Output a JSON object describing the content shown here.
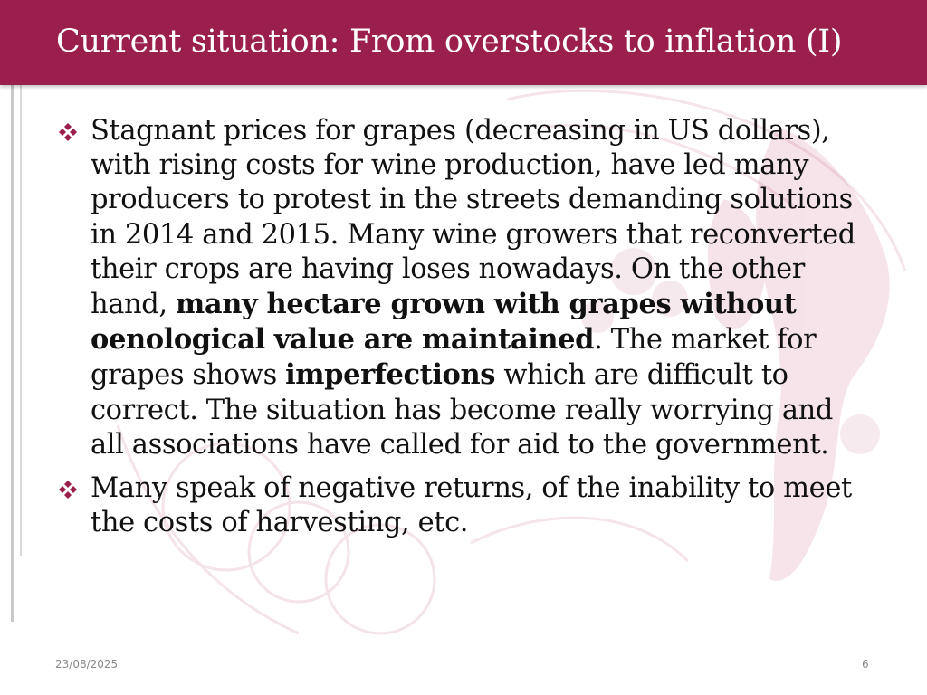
{
  "slide": {
    "title": "Current situation: From overstocks to inflation (I)",
    "bullets": [
      {
        "segments": [
          {
            "text": "Stagnant prices for grapes (decreasing in US dollars), with rising costs for wine production, have led many producers to protest in the streets demanding solutions in 2014 and 2015. Many wine growers that reconverted their crops are having loses nowadays. On the other hand, ",
            "bold": false
          },
          {
            "text": "many hectare grown with grapes without oenological value are maintained",
            "bold": true
          },
          {
            "text": ". The market for grapes shows ",
            "bold": false
          },
          {
            "text": "imperfections",
            "bold": true
          },
          {
            "text": " which are difficult to correct. The situation has become really worrying and all associations have called for aid to the government.",
            "bold": false
          }
        ]
      },
      {
        "segments": [
          {
            "text": "Many speak of negative returns, of the inability to meet the costs of harvesting, etc.",
            "bold": false
          }
        ]
      }
    ],
    "footer": {
      "date": "23/08/2025",
      "page_number": "6"
    }
  },
  "colors": {
    "title_bar": "#9b1f4c",
    "bullet_icon": "#9b1f4c",
    "body_text": "#111111",
    "footer_text": "#8a8a8a"
  },
  "icons": {
    "bullet": "four-diamond-bullet-icon"
  }
}
